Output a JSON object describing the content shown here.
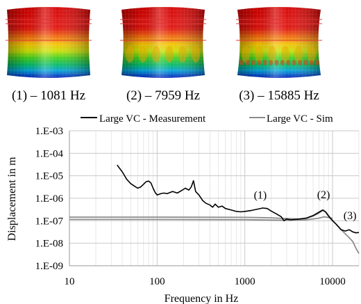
{
  "mode_shapes": [
    {
      "label": "(1) – 1081 Hz",
      "wrinkles": 0
    },
    {
      "label": "(2) – 7959 Hz",
      "wrinkles": 1
    },
    {
      "label": "(3) – 15885 Hz",
      "wrinkles": 2
    }
  ],
  "chart_data": {
    "type": "line",
    "title": "",
    "xlabel": "Frequency in Hz",
    "ylabel": "Displacement in m",
    "x_scale": "log",
    "y_scale": "log",
    "xlim": [
      10,
      20000
    ],
    "ylim": [
      1e-09,
      0.001
    ],
    "x_ticks": [
      10,
      100,
      1000,
      10000
    ],
    "x_tick_labels": [
      "10",
      "100",
      "1000",
      "10000"
    ],
    "y_ticks": [
      1e-09,
      1e-08,
      1e-07,
      1e-06,
      1e-05,
      0.0001,
      0.001
    ],
    "y_tick_labels": [
      "1.E-09",
      "1.E-08",
      "1.E-07",
      "1.E-06",
      "1.E-05",
      "1.E-04",
      "1.E-03"
    ],
    "grid": true,
    "legend_position": "top",
    "series": [
      {
        "name": "Large VC - Measurement",
        "color": "#000000",
        "points": [
          [
            35,
            3e-05
          ],
          [
            40,
            1.5e-05
          ],
          [
            45,
            7e-06
          ],
          [
            50,
            4.5e-06
          ],
          [
            55,
            3.5e-06
          ],
          [
            60,
            2.8e-06
          ],
          [
            65,
            3.2e-06
          ],
          [
            70,
            4.2e-06
          ],
          [
            75,
            5.5e-06
          ],
          [
            80,
            5.8e-06
          ],
          [
            85,
            4.8e-06
          ],
          [
            90,
            2.8e-06
          ],
          [
            95,
            1.8e-06
          ],
          [
            100,
            1.4e-06
          ],
          [
            110,
            1.6e-06
          ],
          [
            120,
            1.7e-06
          ],
          [
            130,
            1.6e-06
          ],
          [
            140,
            1.8e-06
          ],
          [
            150,
            2e-06
          ],
          [
            170,
            1.7e-06
          ],
          [
            190,
            2.2e-06
          ],
          [
            210,
            2.8e-06
          ],
          [
            230,
            2.3e-06
          ],
          [
            245,
            3.2e-06
          ],
          [
            260,
            6e-06
          ],
          [
            275,
            2e-06
          ],
          [
            300,
            1.4e-06
          ],
          [
            330,
            8e-07
          ],
          [
            360,
            6e-07
          ],
          [
            400,
            5e-07
          ],
          [
            430,
            4e-07
          ],
          [
            460,
            5.5e-07
          ],
          [
            500,
            4e-07
          ],
          [
            550,
            4.5e-07
          ],
          [
            600,
            3.5e-07
          ],
          [
            700,
            3e-07
          ],
          [
            800,
            2.6e-07
          ],
          [
            900,
            2.5e-07
          ],
          [
            1000,
            2.6e-07
          ],
          [
            1200,
            2.9e-07
          ],
          [
            1400,
            3.3e-07
          ],
          [
            1600,
            3.7e-07
          ],
          [
            1800,
            3.5e-07
          ],
          [
            2000,
            2.7e-07
          ],
          [
            2300,
            2e-07
          ],
          [
            2600,
            1.5e-07
          ],
          [
            2800,
            1e-07
          ],
          [
            3000,
            1.2e-07
          ],
          [
            3300,
            1.1e-07
          ],
          [
            3700,
            1.15e-07
          ],
          [
            4200,
            1.2e-07
          ],
          [
            5000,
            1.3e-07
          ],
          [
            6000,
            1.7e-07
          ],
          [
            7000,
            2.4e-07
          ],
          [
            7700,
            3e-07
          ],
          [
            8300,
            2.5e-07
          ],
          [
            9000,
            1.6e-07
          ],
          [
            10000,
            1e-07
          ],
          [
            11000,
            7e-08
          ],
          [
            12500,
            4e-08
          ],
          [
            14000,
            3.5e-08
          ],
          [
            15500,
            4e-08
          ],
          [
            17000,
            3.2e-08
          ],
          [
            18500,
            2.9e-08
          ],
          [
            20000,
            3e-08
          ]
        ]
      },
      {
        "name": "Large VC - Sim",
        "color": "#8c8c8c",
        "points": [
          [
            10,
            1.45e-07
          ],
          [
            100,
            1.45e-07
          ],
          [
            1000,
            1.42e-07
          ],
          [
            2000,
            1.35e-07
          ],
          [
            3000,
            1.25e-07
          ],
          [
            4000,
            1.2e-07
          ],
          [
            5000,
            1.25e-07
          ],
          [
            6000,
            1.6e-07
          ],
          [
            7000,
            2.2e-07
          ],
          [
            7900,
            3e-07
          ],
          [
            8500,
            2.3e-07
          ],
          [
            9500,
            1.3e-07
          ],
          [
            11000,
            7e-08
          ],
          [
            13000,
            3.5e-08
          ],
          [
            15000,
            2e-08
          ],
          [
            17000,
            1.2e-08
          ],
          [
            18500,
            6e-09
          ],
          [
            20000,
            3.5e-09
          ]
        ]
      },
      {
        "name": "",
        "color": "#8c8c8c",
        "points": [
          [
            10,
            1.15e-07
          ],
          [
            100,
            1.15e-07
          ],
          [
            1000,
            1.12e-07
          ],
          [
            2000,
            1.08e-07
          ],
          [
            3000,
            1.05e-07
          ],
          [
            5000,
            1.1e-07
          ],
          [
            7000,
            1.3e-07
          ],
          [
            8000,
            1.5e-07
          ],
          [
            10000,
            1.3e-07
          ]
        ]
      }
    ],
    "annotations": [
      {
        "text": "(1)",
        "x": 1500,
        "y": 9.5e-07
      },
      {
        "text": "(2)",
        "x": 7900,
        "y": 1e-06
      },
      {
        "text": "(3)",
        "x": 15800,
        "y": 1.2e-07
      }
    ]
  }
}
